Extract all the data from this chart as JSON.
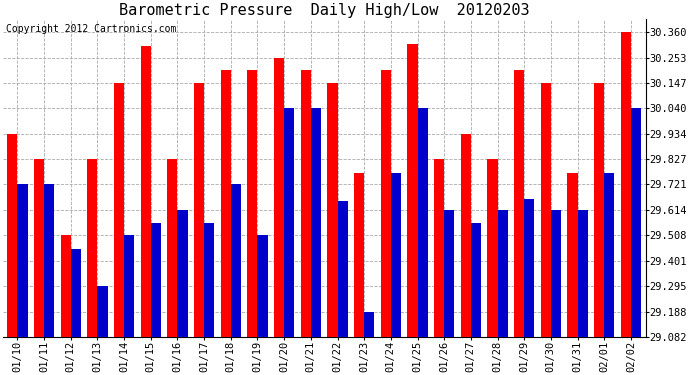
{
  "title": "Barometric Pressure  Daily High/Low  20120203",
  "copyright": "Copyright 2012 Cartronics.com",
  "yticks": [
    29.082,
    29.188,
    29.295,
    29.401,
    29.508,
    29.614,
    29.721,
    29.827,
    29.934,
    30.04,
    30.147,
    30.253,
    30.36
  ],
  "categories": [
    "01/10",
    "01/11",
    "01/12",
    "01/13",
    "01/14",
    "01/15",
    "01/16",
    "01/17",
    "01/18",
    "01/19",
    "01/20",
    "01/21",
    "01/22",
    "01/23",
    "01/24",
    "01/25",
    "01/26",
    "01/27",
    "01/28",
    "01/29",
    "01/30",
    "01/31",
    "02/01",
    "02/02"
  ],
  "highs": [
    29.934,
    29.827,
    29.508,
    29.827,
    30.147,
    30.3,
    29.827,
    30.147,
    30.2,
    30.2,
    30.253,
    30.2,
    30.147,
    29.77,
    30.2,
    30.31,
    29.827,
    29.934,
    29.827,
    30.2,
    30.147,
    29.77,
    30.147,
    30.36
  ],
  "lows": [
    29.721,
    29.721,
    29.45,
    29.295,
    29.508,
    29.56,
    29.614,
    29.56,
    29.721,
    29.508,
    30.04,
    30.04,
    29.65,
    29.188,
    29.77,
    30.04,
    29.614,
    29.56,
    29.614,
    29.66,
    29.614,
    29.614,
    29.77,
    30.04
  ],
  "high_color": "#ff0000",
  "low_color": "#0000cc",
  "bg_color": "#ffffff",
  "grid_color": "#aaaaaa",
  "bar_width": 0.38,
  "ymin": 29.082,
  "ymax": 30.415,
  "title_fontsize": 11,
  "tick_fontsize": 7.5,
  "copyright_fontsize": 7
}
